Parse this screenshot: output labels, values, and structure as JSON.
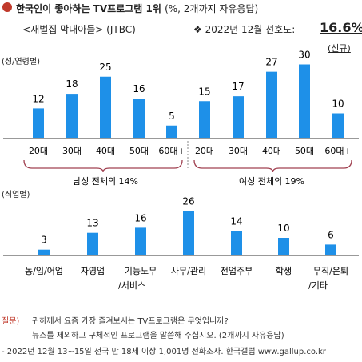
{
  "header": {
    "title": "한국인이 좋아하는 TV프로그램 1위",
    "title_suffix": "(%, 2개까지 자유응답)",
    "program": "- <재벌집 막내아들> (JTBC)",
    "rate_label": "❖ 2022년 12월 선호도:",
    "rate_value": "16.6%",
    "tag": "(신규)"
  },
  "colors": {
    "bar": "#1e90e8",
    "bracket": "#a04050",
    "bullet": "#c0392b"
  },
  "chart_data": [
    {
      "type": "bar",
      "title": "(성/연령별)",
      "categories": [
        "20대",
        "30대",
        "40대",
        "50대",
        "60대+",
        "20대",
        "30대",
        "40대",
        "50대",
        "60대+"
      ],
      "groups": [
        {
          "name": "남성",
          "summary": "남성 전체의 14%",
          "values": [
            12,
            18,
            25,
            16,
            5
          ]
        },
        {
          "name": "여성",
          "summary": "여성 전체의 19%",
          "values": [
            15,
            17,
            27,
            30,
            10
          ]
        }
      ],
      "values": [
        12,
        18,
        25,
        16,
        5,
        15,
        17,
        27,
        30,
        10
      ],
      "ylim": [
        0,
        32
      ]
    },
    {
      "type": "bar",
      "title": "(직업별)",
      "categories": [
        "농/임/어업",
        "자영업",
        "기능노무/서비스",
        "사무/관리",
        "전업주부",
        "학생",
        "무직/은퇴/기타"
      ],
      "category_lines": [
        [
          "농/임/어업"
        ],
        [
          "자영업"
        ],
        [
          "기능노무",
          "/서비스"
        ],
        [
          "사무/관리"
        ],
        [
          "전업주부"
        ],
        [
          "학생"
        ],
        [
          "무직/은퇴",
          "/기타"
        ]
      ],
      "values": [
        3,
        13,
        16,
        26,
        14,
        10,
        6
      ],
      "ylim": [
        0,
        28
      ]
    }
  ],
  "footer": {
    "question_label": "질문)",
    "question_line1": "귀하께서 요즘 가장 즐겨보시는 TV프로그램은 무엇입니까?",
    "question_line2": "뉴스를 제외하고 구체적인 프로그램을 말씀해 주십시오. (2개까지 자유응답)",
    "source": "- 2022년 12월 13~15일 전국 만 18세 이상 1,001명 전화조사. 한국갤럽 www.gallup.co.kr"
  }
}
